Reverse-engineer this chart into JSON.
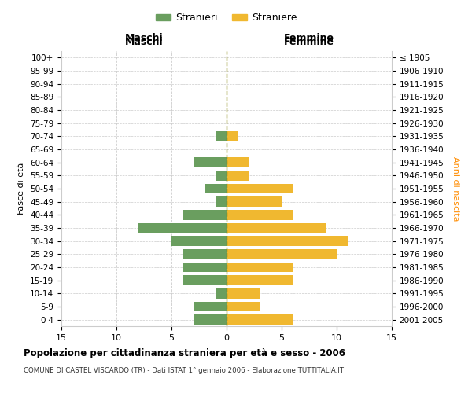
{
  "age_groups": [
    "0-4",
    "5-9",
    "10-14",
    "15-19",
    "20-24",
    "25-29",
    "30-34",
    "35-39",
    "40-44",
    "45-49",
    "50-54",
    "55-59",
    "60-64",
    "65-69",
    "70-74",
    "75-79",
    "80-84",
    "85-89",
    "90-94",
    "95-99",
    "100+"
  ],
  "birth_years": [
    "2001-2005",
    "1996-2000",
    "1991-1995",
    "1986-1990",
    "1981-1985",
    "1976-1980",
    "1971-1975",
    "1966-1970",
    "1961-1965",
    "1956-1960",
    "1951-1955",
    "1946-1950",
    "1941-1945",
    "1936-1940",
    "1931-1935",
    "1926-1930",
    "1921-1925",
    "1916-1920",
    "1911-1915",
    "1906-1910",
    "≤ 1905"
  ],
  "males": [
    3,
    3,
    1,
    4,
    4,
    4,
    5,
    8,
    4,
    1,
    2,
    1,
    3,
    0,
    1,
    0,
    0,
    0,
    0,
    0,
    0
  ],
  "females": [
    6,
    3,
    3,
    6,
    6,
    10,
    11,
    9,
    6,
    5,
    6,
    2,
    2,
    0,
    1,
    0,
    0,
    0,
    0,
    0,
    0
  ],
  "male_color": "#6a9e5f",
  "female_color": "#f0b830",
  "background_color": "#ffffff",
  "grid_color": "#cccccc",
  "title": "Popolazione per cittadinanza straniera per età e sesso - 2006",
  "subtitle": "COMUNE DI CASTEL VISCARDO (TR) - Dati ISTAT 1° gennaio 2006 - Elaborazione TUTTITALIA.IT",
  "xlabel_left": "Maschi",
  "xlabel_right": "Femmine",
  "ylabel_left": "Fasce di età",
  "ylabel_right": "Anni di nascita",
  "legend_male": "Stranieri",
  "legend_female": "Straniere",
  "xlim": 15,
  "center_line_color": "#808000"
}
